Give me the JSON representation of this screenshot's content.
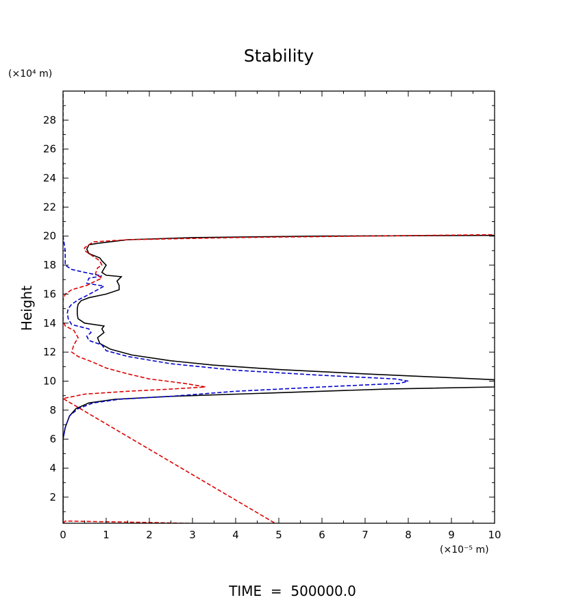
{
  "chart_data": {
    "type": "line",
    "title": "Stability",
    "ylabel": "Height",
    "yunit": "(×10⁴ m)",
    "xunit": "(×10⁻⁵ m)",
    "footer": "TIME  =  500000.0",
    "xlim": [
      0,
      10
    ],
    "ylim": [
      0.2,
      30
    ],
    "xticks": [
      "0",
      "1",
      "2",
      "3",
      "4",
      "5",
      "6",
      "7",
      "8",
      "9",
      "10"
    ],
    "yticks": [
      "2",
      "4",
      "6",
      "8",
      "10",
      "12",
      "14",
      "16",
      "18",
      "20",
      "22",
      "24",
      "26",
      "28"
    ],
    "grid": false,
    "series": [
      {
        "color": "#000000",
        "dash": "solid",
        "points": [
          [
            0,
            0.3
          ],
          [
            0,
            6.0
          ],
          [
            0.05,
            6.8
          ],
          [
            0.15,
            7.6
          ],
          [
            0.3,
            8.1
          ],
          [
            0.6,
            8.5
          ],
          [
            1.2,
            8.75
          ],
          [
            2.5,
            8.95
          ],
          [
            5,
            9.2
          ],
          [
            7.5,
            9.45
          ],
          [
            10,
            9.6
          ],
          [
            10,
            10.1
          ],
          [
            7,
            10.5
          ],
          [
            5,
            10.8
          ],
          [
            3.5,
            11.1
          ],
          [
            2.5,
            11.4
          ],
          [
            1.6,
            11.8
          ],
          [
            1.1,
            12.2
          ],
          [
            0.85,
            12.6
          ],
          [
            0.8,
            13.0
          ],
          [
            0.95,
            13.35
          ],
          [
            0.9,
            13.6
          ],
          [
            0.95,
            13.8
          ],
          [
            0.5,
            14.0
          ],
          [
            0.35,
            14.3
          ],
          [
            0.33,
            14.6
          ],
          [
            0.33,
            15.0
          ],
          [
            0.35,
            15.3
          ],
          [
            0.42,
            15.55
          ],
          [
            0.6,
            15.75
          ],
          [
            1.0,
            16.0
          ],
          [
            1.3,
            16.3
          ],
          [
            1.3,
            16.6
          ],
          [
            1.25,
            16.9
          ],
          [
            1.35,
            17.2
          ],
          [
            1.0,
            17.3
          ],
          [
            0.9,
            17.5
          ],
          [
            0.95,
            17.75
          ],
          [
            1.0,
            18.0
          ],
          [
            0.9,
            18.3
          ],
          [
            0.85,
            18.5
          ],
          [
            0.6,
            18.8
          ],
          [
            0.55,
            19.1
          ],
          [
            0.6,
            19.4
          ],
          [
            0.8,
            19.5
          ],
          [
            1.5,
            19.75
          ],
          [
            3,
            19.9
          ],
          [
            6,
            20.0
          ],
          [
            10,
            20.05
          ]
        ]
      },
      {
        "color": "#0000cc",
        "dash": "dashed",
        "points": [
          [
            0,
            0.3
          ],
          [
            0,
            6.0
          ],
          [
            0.05,
            6.8
          ],
          [
            0.15,
            7.6
          ],
          [
            0.35,
            8.1
          ],
          [
            0.7,
            8.5
          ],
          [
            1.3,
            8.75
          ],
          [
            2.5,
            8.95
          ],
          [
            4,
            9.3
          ],
          [
            6,
            9.6
          ],
          [
            7.8,
            9.85
          ],
          [
            8.0,
            10.0
          ],
          [
            7.7,
            10.15
          ],
          [
            6,
            10.4
          ],
          [
            4,
            10.75
          ],
          [
            2.5,
            11.2
          ],
          [
            1.5,
            11.7
          ],
          [
            1.0,
            12.1
          ],
          [
            0.9,
            12.5
          ],
          [
            0.6,
            12.8
          ],
          [
            0.55,
            13.1
          ],
          [
            0.65,
            13.35
          ],
          [
            0.6,
            13.6
          ],
          [
            0.2,
            13.9
          ],
          [
            0.12,
            14.3
          ],
          [
            0.1,
            14.7
          ],
          [
            0.12,
            15.0
          ],
          [
            0.2,
            15.3
          ],
          [
            0.35,
            15.6
          ],
          [
            0.55,
            15.9
          ],
          [
            0.8,
            16.3
          ],
          [
            0.95,
            16.55
          ],
          [
            0.55,
            16.75
          ],
          [
            0.6,
            17.1
          ],
          [
            0.9,
            17.25
          ],
          [
            0.5,
            17.5
          ],
          [
            0.2,
            17.7
          ],
          [
            0.05,
            18.0
          ],
          [
            0.05,
            19.0
          ],
          [
            0,
            20.0
          ],
          [
            0,
            30.0
          ]
        ]
      },
      {
        "color": "#dd0000",
        "dash": "dashed",
        "points": [
          [
            0,
            0.2
          ],
          [
            0.05,
            0.35
          ],
          [
            2,
            0.25
          ],
          [
            5,
            0.05
          ],
          [
            0,
            8.8
          ],
          [
            0.5,
            9.1
          ],
          [
            1.5,
            9.3
          ],
          [
            2.5,
            9.45
          ],
          [
            3.3,
            9.6
          ],
          [
            2.8,
            9.85
          ],
          [
            2.0,
            10.15
          ],
          [
            1.5,
            10.5
          ],
          [
            1.0,
            10.9
          ],
          [
            0.7,
            11.3
          ],
          [
            0.35,
            11.7
          ],
          [
            0.2,
            12.0
          ],
          [
            0.25,
            12.5
          ],
          [
            0.35,
            13.0
          ],
          [
            0.25,
            13.5
          ],
          [
            0.05,
            13.8
          ],
          [
            0,
            14.2
          ],
          [
            0,
            15.6
          ],
          [
            0.05,
            16.0
          ],
          [
            0.2,
            16.3
          ],
          [
            0.55,
            16.6
          ],
          [
            0.75,
            16.9
          ],
          [
            0.9,
            17.1
          ],
          [
            0.75,
            17.4
          ],
          [
            0.8,
            17.8
          ],
          [
            0.9,
            18.0
          ],
          [
            0.85,
            18.3
          ],
          [
            0.7,
            18.6
          ],
          [
            0.5,
            19.0
          ],
          [
            0.5,
            19.2
          ],
          [
            0.6,
            19.4
          ],
          [
            0.7,
            19.6
          ],
          [
            1.5,
            19.75
          ],
          [
            4,
            19.9
          ],
          [
            7,
            20.0
          ],
          [
            10,
            20.1
          ]
        ]
      }
    ]
  }
}
